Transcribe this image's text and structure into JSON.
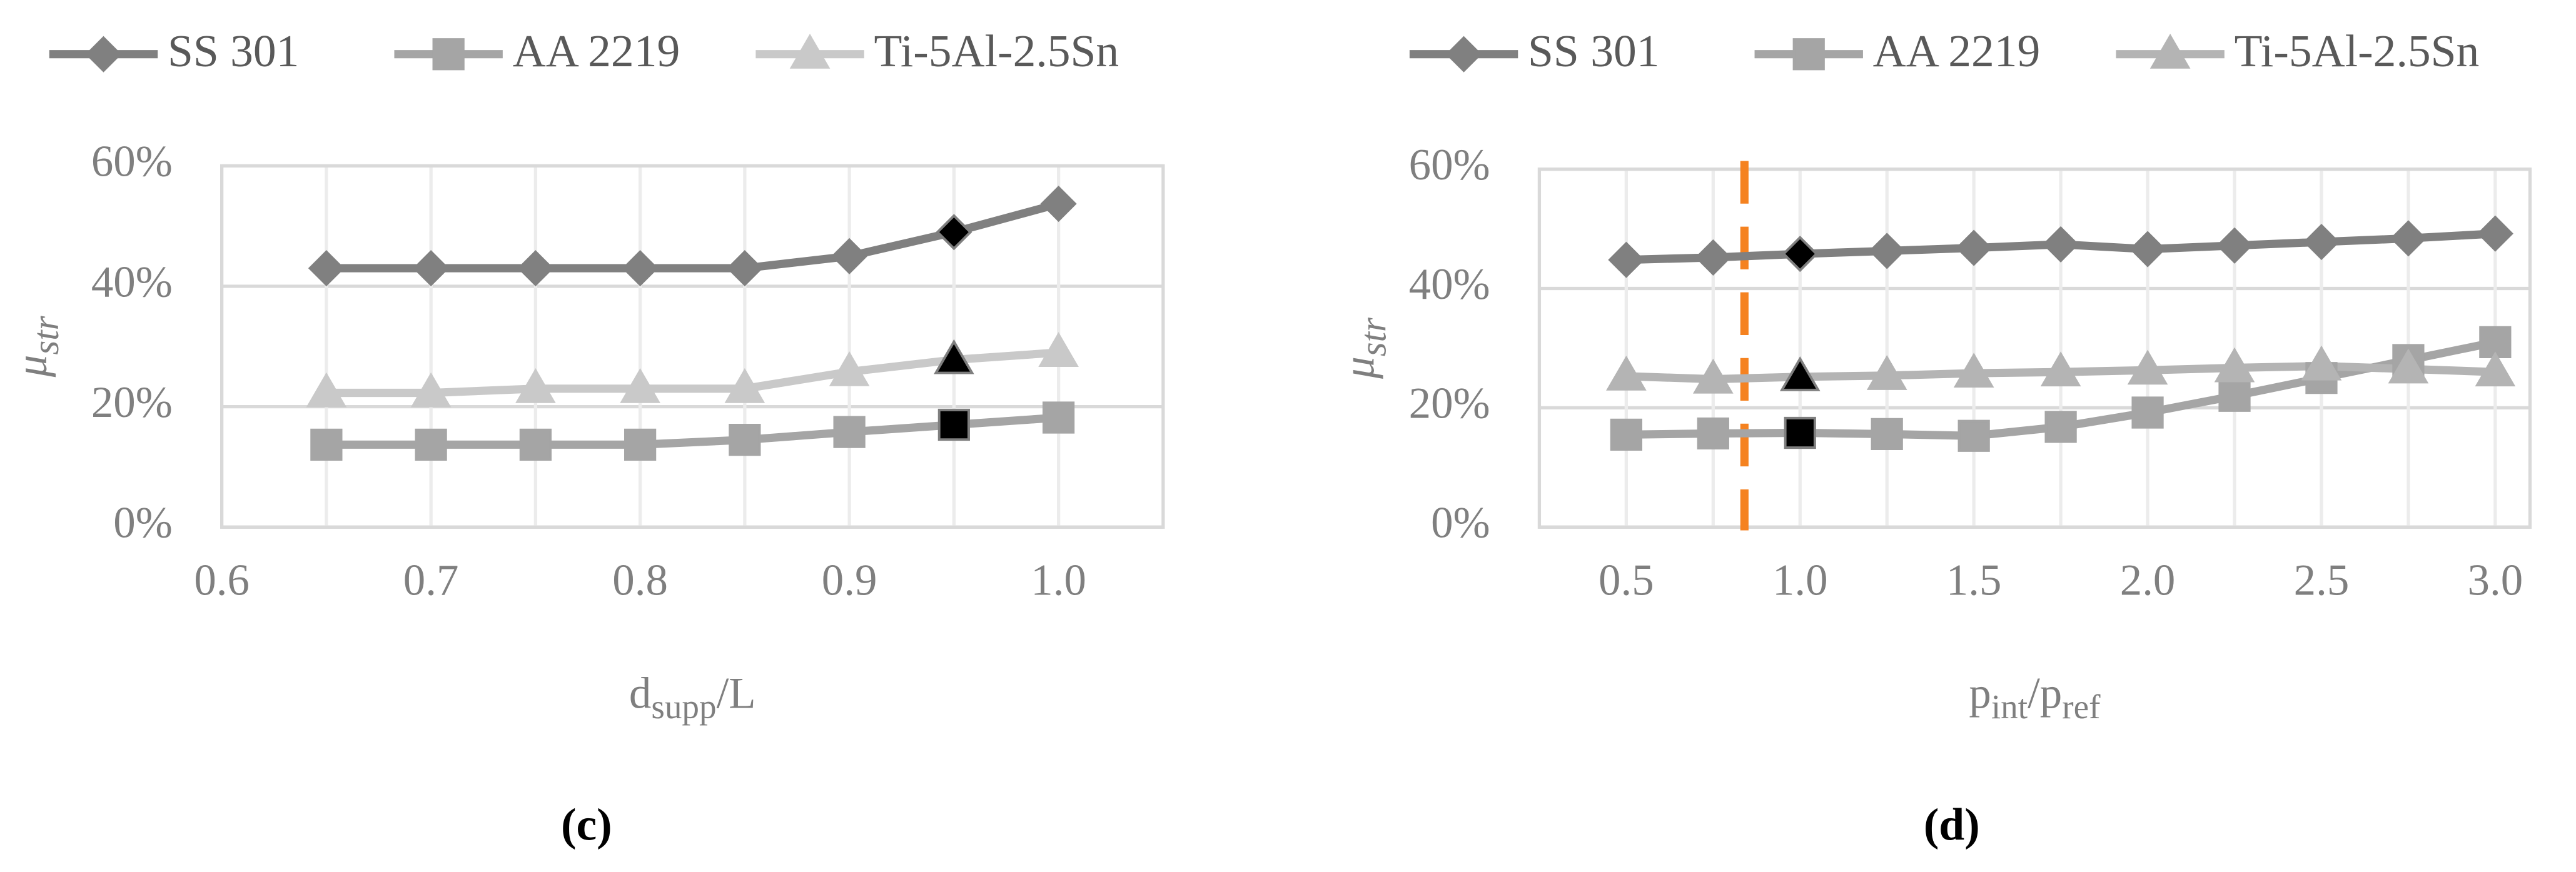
{
  "chart_data": [
    {
      "type": "line",
      "panel_label": "(c)",
      "xlabel": [
        {
          "text": "d"
        },
        {
          "text": "supp",
          "sub": true
        },
        {
          "text": "/L"
        }
      ],
      "ylabel": [
        {
          "text": "μ"
        },
        {
          "text": "str",
          "sub": true
        }
      ],
      "x": [
        0.65,
        0.7,
        0.75,
        0.8,
        0.85,
        0.9,
        0.95,
        1.0
      ],
      "series": [
        {
          "name": "SS 301",
          "color": "#808080",
          "marker": "diamond",
          "values": [
            43,
            43,
            43,
            43,
            43,
            45,
            49,
            53.7
          ]
        },
        {
          "name": "AA 2219",
          "color": "#a5a5a5",
          "marker": "square",
          "values": [
            13.7,
            13.7,
            13.7,
            13.7,
            14.5,
            15.8,
            17,
            18.2
          ]
        },
        {
          "name": "Ti-5Al-2.5Sn",
          "color": "#c9c9c9",
          "marker": "triangle",
          "values": [
            22.3,
            22.3,
            23,
            23,
            23,
            25.8,
            27.8,
            29
          ]
        }
      ],
      "highlight_x": 0.95,
      "xlim": [
        0.6,
        1.05
      ],
      "xticks": [
        0.6,
        0.7,
        0.8,
        0.9,
        {
          "value": 1,
          "label": "1.0"
        }
      ],
      "ylim": [
        0,
        60
      ],
      "yticks": [
        {
          "value": 0,
          "label": "0%"
        },
        {
          "value": 20,
          "label": "20%"
        },
        {
          "value": 40,
          "label": "40%"
        },
        {
          "value": 60,
          "label": "60%"
        }
      ],
      "grid": true
    },
    {
      "type": "line",
      "panel_label": "(d)",
      "xlabel": [
        {
          "text": "p"
        },
        {
          "text": "int",
          "sub": true
        },
        {
          "text": "/p"
        },
        {
          "text": "ref",
          "sub": true
        }
      ],
      "ylabel": [
        {
          "text": "μ"
        },
        {
          "text": "str",
          "sub": true
        }
      ],
      "x": [
        0.5,
        0.75,
        1.0,
        1.25,
        1.5,
        1.75,
        2.0,
        2.25,
        2.5,
        2.75,
        3.0
      ],
      "series": [
        {
          "name": "SS 301",
          "color": "#808080",
          "marker": "diamond",
          "values": [
            44.8,
            45.2,
            45.8,
            46.3,
            46.8,
            47.4,
            46.6,
            47.2,
            47.8,
            48.4,
            49.2
          ]
        },
        {
          "name": "AA 2219",
          "color": "#a5a5a5",
          "marker": "square",
          "values": [
            15.5,
            15.7,
            15.8,
            15.6,
            15.3,
            16.8,
            19.2,
            22,
            25,
            28,
            31
          ]
        },
        {
          "name": "Ti-5Al-2.5Sn",
          "color": "#b4b4b4",
          "marker": "triangle",
          "values": [
            25.3,
            24.8,
            25.2,
            25.4,
            25.8,
            26,
            26.3,
            26.7,
            27,
            26.5,
            26
          ]
        }
      ],
      "highlight_x": 1.0,
      "vline": {
        "x": 0.84,
        "color": "#f58220"
      },
      "xlim": [
        0.25,
        3.1
      ],
      "xticks": [
        0.5,
        {
          "value": 1,
          "label": "1.0"
        },
        1.5,
        {
          "value": 2,
          "label": "2.0"
        },
        2.5,
        {
          "value": 3,
          "label": "3.0"
        }
      ],
      "ylim": [
        0,
        60
      ],
      "yticks": [
        {
          "value": 0,
          "label": "0%"
        },
        {
          "value": 20,
          "label": "20%"
        },
        {
          "value": 40,
          "label": "40%"
        },
        {
          "value": 60,
          "label": "60%"
        }
      ],
      "grid": true
    }
  ]
}
